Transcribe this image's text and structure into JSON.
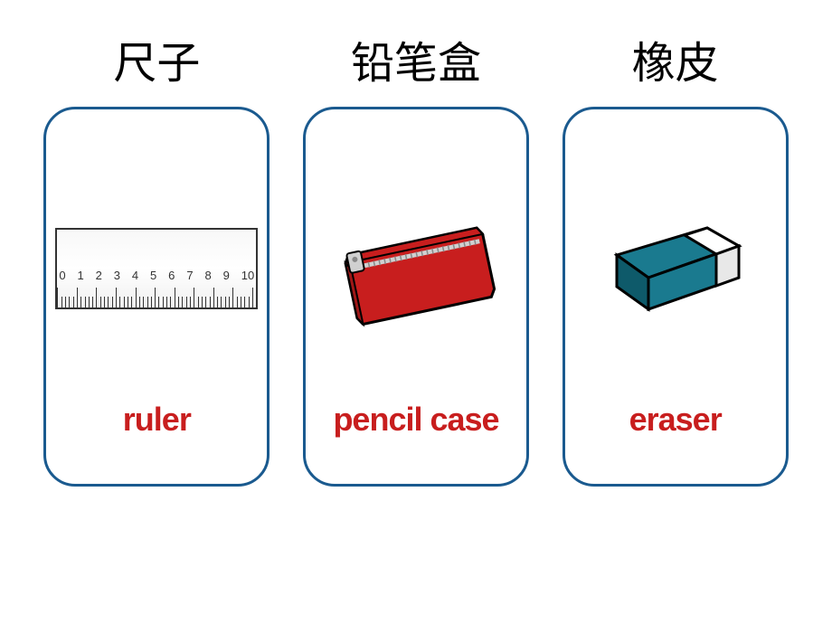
{
  "cards": [
    {
      "chinese": "尺子",
      "english": "ruler",
      "border_color": "#1a5a8f",
      "label_color": "#c81e1e"
    },
    {
      "chinese": "铅笔盒",
      "english": "pencil case",
      "border_color": "#1a5a8f",
      "label_color": "#c81e1e"
    },
    {
      "chinese": "橡皮",
      "english": "eraser",
      "border_color": "#1a5a8f",
      "label_color": "#c81e1e"
    }
  ],
  "ruler": {
    "numbers": [
      "0",
      "1",
      "2",
      "3",
      "4",
      "5",
      "6",
      "7",
      "8",
      "9",
      "10"
    ]
  },
  "pencil_case": {
    "body_color": "#c81e1e",
    "body_shadow": "#a01818",
    "zipper_color": "#d0d0d0",
    "outline": "#000000"
  },
  "eraser": {
    "top_color": "#1a7a8f",
    "sleeve_color": "#ffffff",
    "outline": "#000000",
    "side_shade": "#0e5a6a"
  }
}
